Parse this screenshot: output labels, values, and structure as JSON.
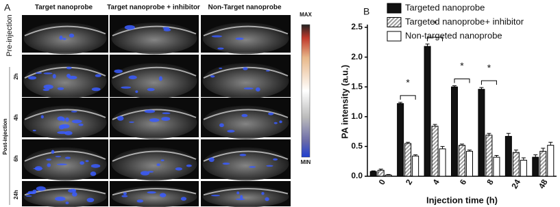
{
  "panel_a": {
    "label": "A",
    "columns": [
      "Target nanoprobe",
      "Target nanoprobe + inhibitor",
      "Non-Target nanoprobe"
    ],
    "pre_label": "Pre-injection",
    "post_label": "Post-injection",
    "rows": [
      "2h",
      "4h",
      "6h",
      "24h"
    ],
    "colorbar_max": "MAX",
    "colorbar_min": "MIN"
  },
  "chart_data": {
    "type": "bar",
    "label": "B",
    "x_label": "Injection time (h)",
    "y_label": "PA intensity (a.u.)",
    "categories": [
      "0",
      "2",
      "4",
      "6",
      "8",
      "24",
      "48"
    ],
    "series": [
      {
        "name": "Targeted nanoprobe",
        "color": "#111111",
        "values": [
          0.08,
          1.22,
          2.18,
          1.5,
          1.46,
          0.67,
          0.32
        ],
        "errors": [
          0.01,
          0.02,
          0.04,
          0.02,
          0.03,
          0.05,
          0.04
        ]
      },
      {
        "name": "Targeted nanoprobe+ inhibitor",
        "color": "#9a9a9a",
        "values": [
          0.1,
          0.55,
          0.84,
          0.52,
          0.69,
          0.4,
          0.42
        ],
        "errors": [
          0.02,
          0.02,
          0.03,
          0.02,
          0.03,
          0.04,
          0.05
        ]
      },
      {
        "name": "Non-targeted nanoprobe",
        "color": "#ffffff",
        "values": [
          0.02,
          0.34,
          0.46,
          0.42,
          0.32,
          0.27,
          0.52
        ],
        "errors": [
          0.01,
          0.02,
          0.04,
          0.02,
          0.03,
          0.04,
          0.05
        ]
      }
    ],
    "ylim": [
      0,
      2.5
    ],
    "yticks": [
      {
        "value": 0,
        "label": "0.0"
      },
      0.5,
      {
        "value": 1,
        "label": "1.0"
      },
      1.5,
      {
        "value": 2,
        "label": "2.0"
      },
      2.5
    ],
    "annotations": [
      {
        "text": "*",
        "category": "2"
      },
      {
        "text": "*",
        "category": "4"
      },
      {
        "text": "*",
        "category": "6"
      },
      {
        "text": "*",
        "category": "8"
      }
    ],
    "legend": "top-right"
  }
}
